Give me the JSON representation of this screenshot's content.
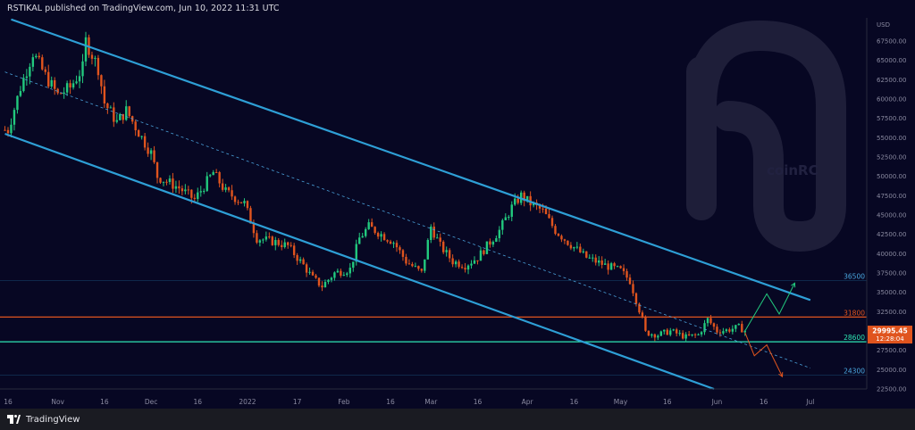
{
  "header": {
    "text": "RSTIKAL published on TradingView.com, Jun 10, 2022 11:31 UTC"
  },
  "footer": {
    "brand": "TradingView"
  },
  "watermark": {
    "text": "coinRC"
  },
  "chart_data": {
    "type": "candlestick",
    "currency": "USD",
    "y_range": [
      22500,
      70500
    ],
    "y_ticks": [
      22500,
      25000,
      27500,
      30000,
      32500,
      35000,
      37500,
      40000,
      42500,
      45000,
      47500,
      50000,
      52500,
      55000,
      57500,
      60000,
      62500,
      65000,
      67500
    ],
    "y_tick_labels": [
      "22500.00",
      "25000.00",
      "27500.00",
      "30000.00",
      "32500.00",
      "35000.00",
      "37500.00",
      "40000.00",
      "42500.00",
      "45000.00",
      "47500.00",
      "50000.00",
      "52500.00",
      "55000.00",
      "57500.00",
      "60000.00",
      "62500.00",
      "65000.00",
      "67500.00"
    ],
    "x_ticks": [
      {
        "label": "16",
        "day": 0
      },
      {
        "label": "Nov",
        "day": 16
      },
      {
        "label": "16",
        "day": 31
      },
      {
        "label": "Dec",
        "day": 46
      },
      {
        "label": "16",
        "day": 61
      },
      {
        "label": "2022",
        "day": 77
      },
      {
        "label": "17",
        "day": 93
      },
      {
        "label": "Feb",
        "day": 108
      },
      {
        "label": "16",
        "day": 123
      },
      {
        "label": "Mar",
        "day": 136
      },
      {
        "label": "16",
        "day": 151
      },
      {
        "label": "Apr",
        "day": 167
      },
      {
        "label": "16",
        "day": 182
      },
      {
        "label": "May",
        "day": 197
      },
      {
        "label": "16",
        "day": 212
      },
      {
        "label": "Jun",
        "day": 228
      },
      {
        "label": "16",
        "day": 243
      },
      {
        "label": "Jul",
        "day": 258
      }
    ],
    "price_key": [
      [
        0,
        56000
      ],
      [
        4,
        61500
      ],
      [
        8,
        66000
      ],
      [
        12,
        63000
      ],
      [
        16,
        60500
      ],
      [
        20,
        61500
      ],
      [
        24,
        64000
      ],
      [
        25,
        67500
      ],
      [
        29,
        64000
      ],
      [
        31,
        59500
      ],
      [
        35,
        57000
      ],
      [
        38,
        58500
      ],
      [
        43,
        55000
      ],
      [
        46,
        53000
      ],
      [
        48,
        50000
      ],
      [
        55,
        48500
      ],
      [
        60,
        47000
      ],
      [
        66,
        50500
      ],
      [
        70,
        48000
      ],
      [
        76,
        46500
      ],
      [
        80,
        42000
      ],
      [
        86,
        41500
      ],
      [
        90,
        41000
      ],
      [
        95,
        38500
      ],
      [
        98,
        36800
      ],
      [
        101,
        35800
      ],
      [
        105,
        37500
      ],
      [
        110,
        38000
      ],
      [
        113,
        42000
      ],
      [
        116,
        43500
      ],
      [
        120,
        42500
      ],
      [
        124,
        41500
      ],
      [
        128,
        39000
      ],
      [
        133,
        37500
      ],
      [
        136,
        43500
      ],
      [
        139,
        41000
      ],
      [
        143,
        39000
      ],
      [
        147,
        38500
      ],
      [
        151,
        39500
      ],
      [
        155,
        41500
      ],
      [
        158,
        43000
      ],
      [
        162,
        46000
      ],
      [
        165,
        47500
      ],
      [
        168,
        46500
      ],
      [
        172,
        45500
      ],
      [
        176,
        43000
      ],
      [
        180,
        41500
      ],
      [
        186,
        39500
      ],
      [
        192,
        38500
      ],
      [
        197,
        37800
      ],
      [
        200,
        36500
      ],
      [
        202,
        34000
      ],
      [
        204,
        31500
      ],
      [
        205,
        29800
      ],
      [
        209,
        29500
      ],
      [
        213,
        30000
      ],
      [
        218,
        29200
      ],
      [
        222,
        29500
      ],
      [
        225,
        31500
      ],
      [
        228,
        30000
      ],
      [
        231,
        30100
      ],
      [
        235,
        30500
      ],
      [
        237,
        29995
      ]
    ],
    "candle_start_day": -1,
    "candle_end_day": 237,
    "channel_upper": {
      "start": {
        "day": 1,
        "price": 70300
      },
      "end": {
        "day": 258,
        "price": 34000
      }
    },
    "channel_lower": {
      "start": {
        "day": -1,
        "price": 55500
      },
      "end": {
        "day": 227,
        "price": 22500
      }
    },
    "channel_mid": {
      "start": {
        "day": -1,
        "price": 63500
      },
      "end": {
        "day": 258,
        "price": 25200
      }
    },
    "levels": [
      {
        "price": 36500,
        "label": "36500",
        "color": "#2e9fd6",
        "style": "faint",
        "text_color": "#4aa8e0"
      },
      {
        "price": 31800,
        "label": "31800",
        "color": "#e0541e",
        "style": "solid",
        "text_color": "#e0541e"
      },
      {
        "price": 28600,
        "label": "28600",
        "color": "#2ee6b4",
        "style": "solid",
        "text_color": "#2ee6b4"
      },
      {
        "price": 24300,
        "label": "24300",
        "color": "#2e9fd6",
        "style": "faint",
        "text_color": "#4aa8e0"
      }
    ],
    "last_price": {
      "value": "29995.45",
      "countdown": "12:28:04",
      "color": "#e0541e"
    },
    "projection_up": [
      {
        "day": 237,
        "price": 30000
      },
      {
        "day": 244,
        "price": 34800
      },
      {
        "day": 248,
        "price": 32200
      },
      {
        "day": 253,
        "price": 36200
      }
    ],
    "projection_down": [
      {
        "day": 237,
        "price": 29800
      },
      {
        "day": 240,
        "price": 26800
      },
      {
        "day": 244,
        "price": 28200
      },
      {
        "day": 249,
        "price": 24100
      }
    ]
  }
}
